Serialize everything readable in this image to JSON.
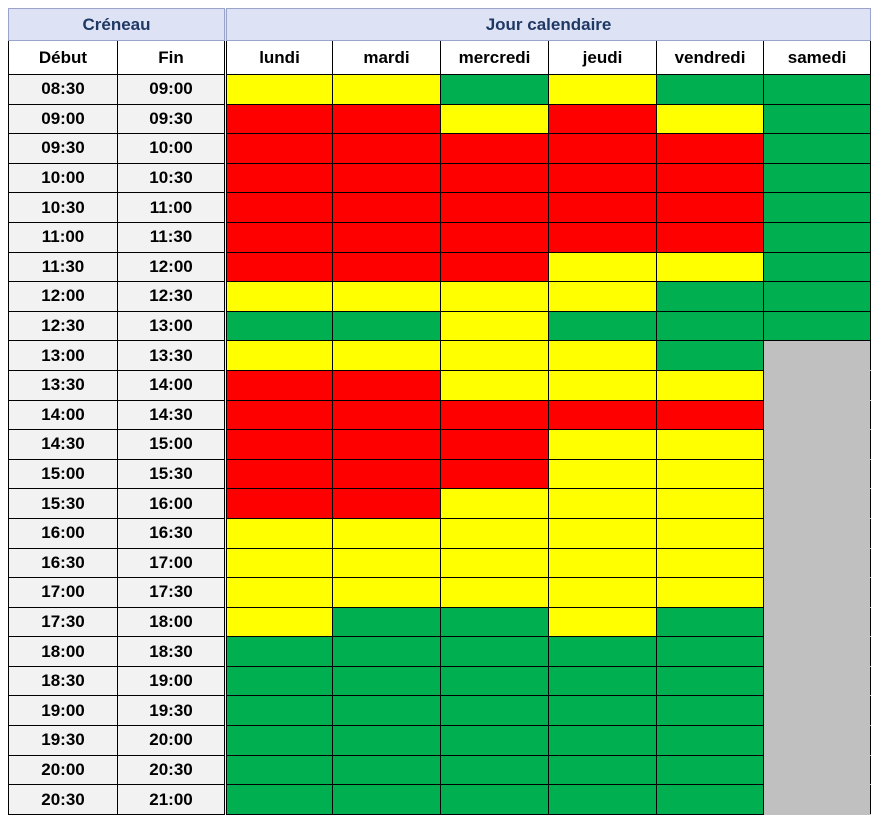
{
  "header": {
    "groups": [
      "Créneau",
      "Jour calendaire"
    ],
    "columns": [
      "Début",
      "Fin",
      "lundi",
      "mardi",
      "mercredi",
      "jeudi",
      "vendredi",
      "samedi"
    ]
  },
  "rows": [
    {
      "start": "08:30",
      "end": "09:00",
      "colors": [
        "#ffff00",
        "#ffff00",
        "#00b050",
        "#ffff00",
        "#00b050",
        "#00b050"
      ]
    },
    {
      "start": "09:00",
      "end": "09:30",
      "colors": [
        "#ff0000",
        "#ff0000",
        "#ffff00",
        "#ff0000",
        "#ffff00",
        "#00b050"
      ]
    },
    {
      "start": "09:30",
      "end": "10:00",
      "colors": [
        "#ff0000",
        "#ff0000",
        "#ff0000",
        "#ff0000",
        "#ff0000",
        "#00b050"
      ]
    },
    {
      "start": "10:00",
      "end": "10:30",
      "colors": [
        "#ff0000",
        "#ff0000",
        "#ff0000",
        "#ff0000",
        "#ff0000",
        "#00b050"
      ]
    },
    {
      "start": "10:30",
      "end": "11:00",
      "colors": [
        "#ff0000",
        "#ff0000",
        "#ff0000",
        "#ff0000",
        "#ff0000",
        "#00b050"
      ]
    },
    {
      "start": "11:00",
      "end": "11:30",
      "colors": [
        "#ff0000",
        "#ff0000",
        "#ff0000",
        "#ff0000",
        "#ff0000",
        "#00b050"
      ]
    },
    {
      "start": "11:30",
      "end": "12:00",
      "colors": [
        "#ff0000",
        "#ff0000",
        "#ff0000",
        "#ffff00",
        "#ffff00",
        "#00b050"
      ]
    },
    {
      "start": "12:00",
      "end": "12:30",
      "colors": [
        "#ffff00",
        "#ffff00",
        "#ffff00",
        "#ffff00",
        "#00b050",
        "#00b050"
      ]
    },
    {
      "start": "12:30",
      "end": "13:00",
      "colors": [
        "#00b050",
        "#00b050",
        "#ffff00",
        "#00b050",
        "#00b050",
        "#00b050"
      ]
    },
    {
      "start": "13:00",
      "end": "13:30",
      "colors": [
        "#ffff00",
        "#ffff00",
        "#ffff00",
        "#ffff00",
        "#00b050",
        "#c0c0c0"
      ]
    },
    {
      "start": "13:30",
      "end": "14:00",
      "colors": [
        "#ff0000",
        "#ff0000",
        "#ffff00",
        "#ffff00",
        "#ffff00",
        "#c0c0c0"
      ]
    },
    {
      "start": "14:00",
      "end": "14:30",
      "colors": [
        "#ff0000",
        "#ff0000",
        "#ff0000",
        "#ff0000",
        "#ff0000",
        "#c0c0c0"
      ]
    },
    {
      "start": "14:30",
      "end": "15:00",
      "colors": [
        "#ff0000",
        "#ff0000",
        "#ff0000",
        "#ffff00",
        "#ffff00",
        "#c0c0c0"
      ]
    },
    {
      "start": "15:00",
      "end": "15:30",
      "colors": [
        "#ff0000",
        "#ff0000",
        "#ff0000",
        "#ffff00",
        "#ffff00",
        "#c0c0c0"
      ]
    },
    {
      "start": "15:30",
      "end": "16:00",
      "colors": [
        "#ff0000",
        "#ff0000",
        "#ffff00",
        "#ffff00",
        "#ffff00",
        "#c0c0c0"
      ]
    },
    {
      "start": "16:00",
      "end": "16:30",
      "colors": [
        "#ffff00",
        "#ffff00",
        "#ffff00",
        "#ffff00",
        "#ffff00",
        "#c0c0c0"
      ]
    },
    {
      "start": "16:30",
      "end": "17:00",
      "colors": [
        "#ffff00",
        "#ffff00",
        "#ffff00",
        "#ffff00",
        "#ffff00",
        "#c0c0c0"
      ]
    },
    {
      "start": "17:00",
      "end": "17:30",
      "colors": [
        "#ffff00",
        "#ffff00",
        "#ffff00",
        "#ffff00",
        "#ffff00",
        "#c0c0c0"
      ]
    },
    {
      "start": "17:30",
      "end": "18:00",
      "colors": [
        "#ffff00",
        "#00b050",
        "#00b050",
        "#ffff00",
        "#00b050",
        "#c0c0c0"
      ]
    },
    {
      "start": "18:00",
      "end": "18:30",
      "colors": [
        "#00b050",
        "#00b050",
        "#00b050",
        "#00b050",
        "#00b050",
        "#c0c0c0"
      ]
    },
    {
      "start": "18:30",
      "end": "19:00",
      "colors": [
        "#00b050",
        "#00b050",
        "#00b050",
        "#00b050",
        "#00b050",
        "#c0c0c0"
      ]
    },
    {
      "start": "19:00",
      "end": "19:30",
      "colors": [
        "#00b050",
        "#00b050",
        "#00b050",
        "#00b050",
        "#00b050",
        "#c0c0c0"
      ]
    },
    {
      "start": "19:30",
      "end": "20:00",
      "colors": [
        "#00b050",
        "#00b050",
        "#00b050",
        "#00b050",
        "#00b050",
        "#c0c0c0"
      ]
    },
    {
      "start": "20:00",
      "end": "20:30",
      "colors": [
        "#00b050",
        "#00b050",
        "#00b050",
        "#00b050",
        "#00b050",
        "#c0c0c0"
      ]
    },
    {
      "start": "20:30",
      "end": "21:00",
      "colors": [
        "#00b050",
        "#00b050",
        "#00b050",
        "#00b050",
        "#00b050",
        "#c0c0c0"
      ]
    }
  ]
}
